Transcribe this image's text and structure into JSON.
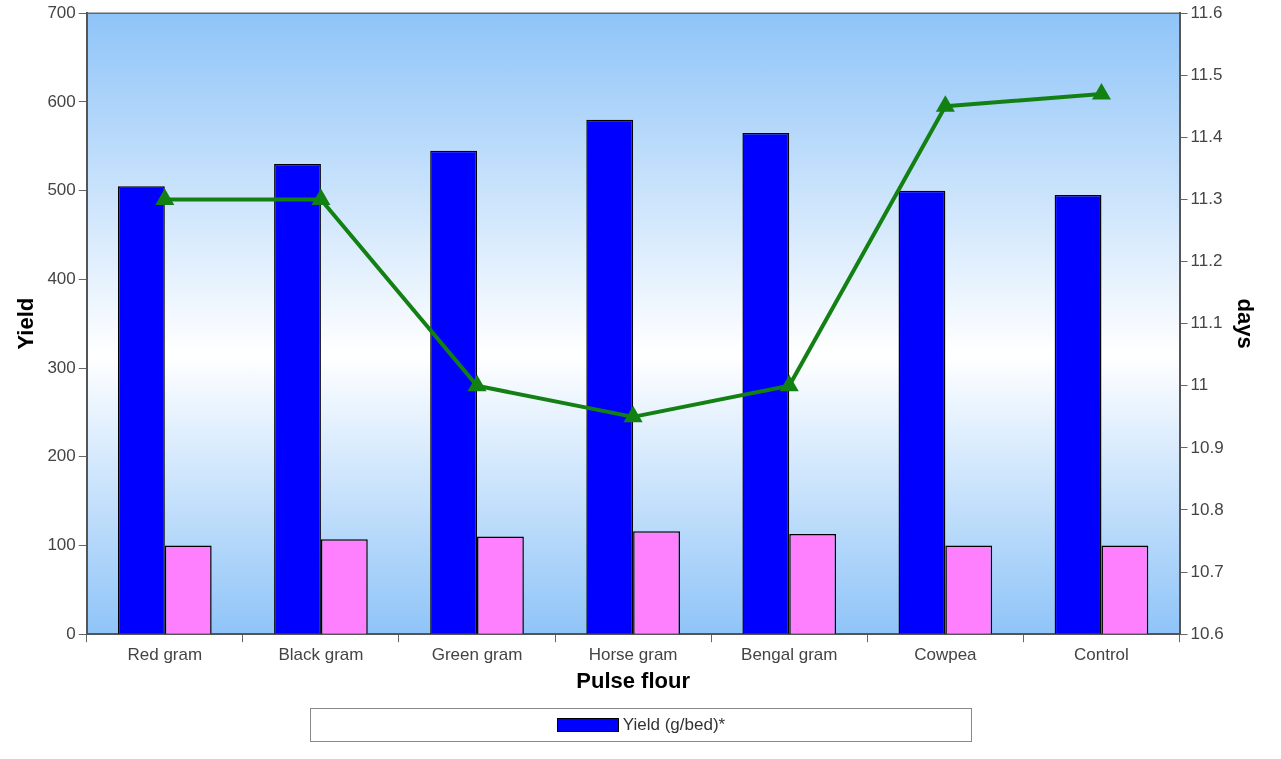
{
  "chart_data": {
    "type": "bar",
    "xlabel": "Pulse flour",
    "ylabel": "Yield",
    "y2label": "days",
    "categories": [
      "Red gram",
      "Black gram",
      "Green gram",
      "Horse gram",
      "Bengal gram",
      "Cowpea",
      "Control"
    ],
    "series": [
      {
        "name": "Yield (g/bed)*",
        "color": "#0000ff",
        "values": [
          505,
          530,
          545,
          580,
          565,
          500,
          495
        ]
      },
      {
        "color": "#ff80ff",
        "values": [
          100,
          107,
          110,
          116,
          113,
          100,
          100
        ]
      },
      {
        "type": "line",
        "axis": "y2",
        "color": "#138013",
        "marker": "triangle",
        "values": [
          11.3,
          11.3,
          11.0,
          10.95,
          11.0,
          11.45,
          11.47
        ]
      }
    ],
    "ylim": [
      0,
      700
    ],
    "yticks": [
      0,
      100,
      200,
      300,
      400,
      500,
      600,
      700
    ],
    "y2lim": [
      10.6,
      11.6
    ],
    "y2ticks": [
      10.6,
      10.7,
      10.8,
      10.9,
      11,
      11.1,
      11.2,
      11.3,
      11.4,
      11.5,
      11.6
    ],
    "grid": false,
    "legend": "bottom"
  }
}
